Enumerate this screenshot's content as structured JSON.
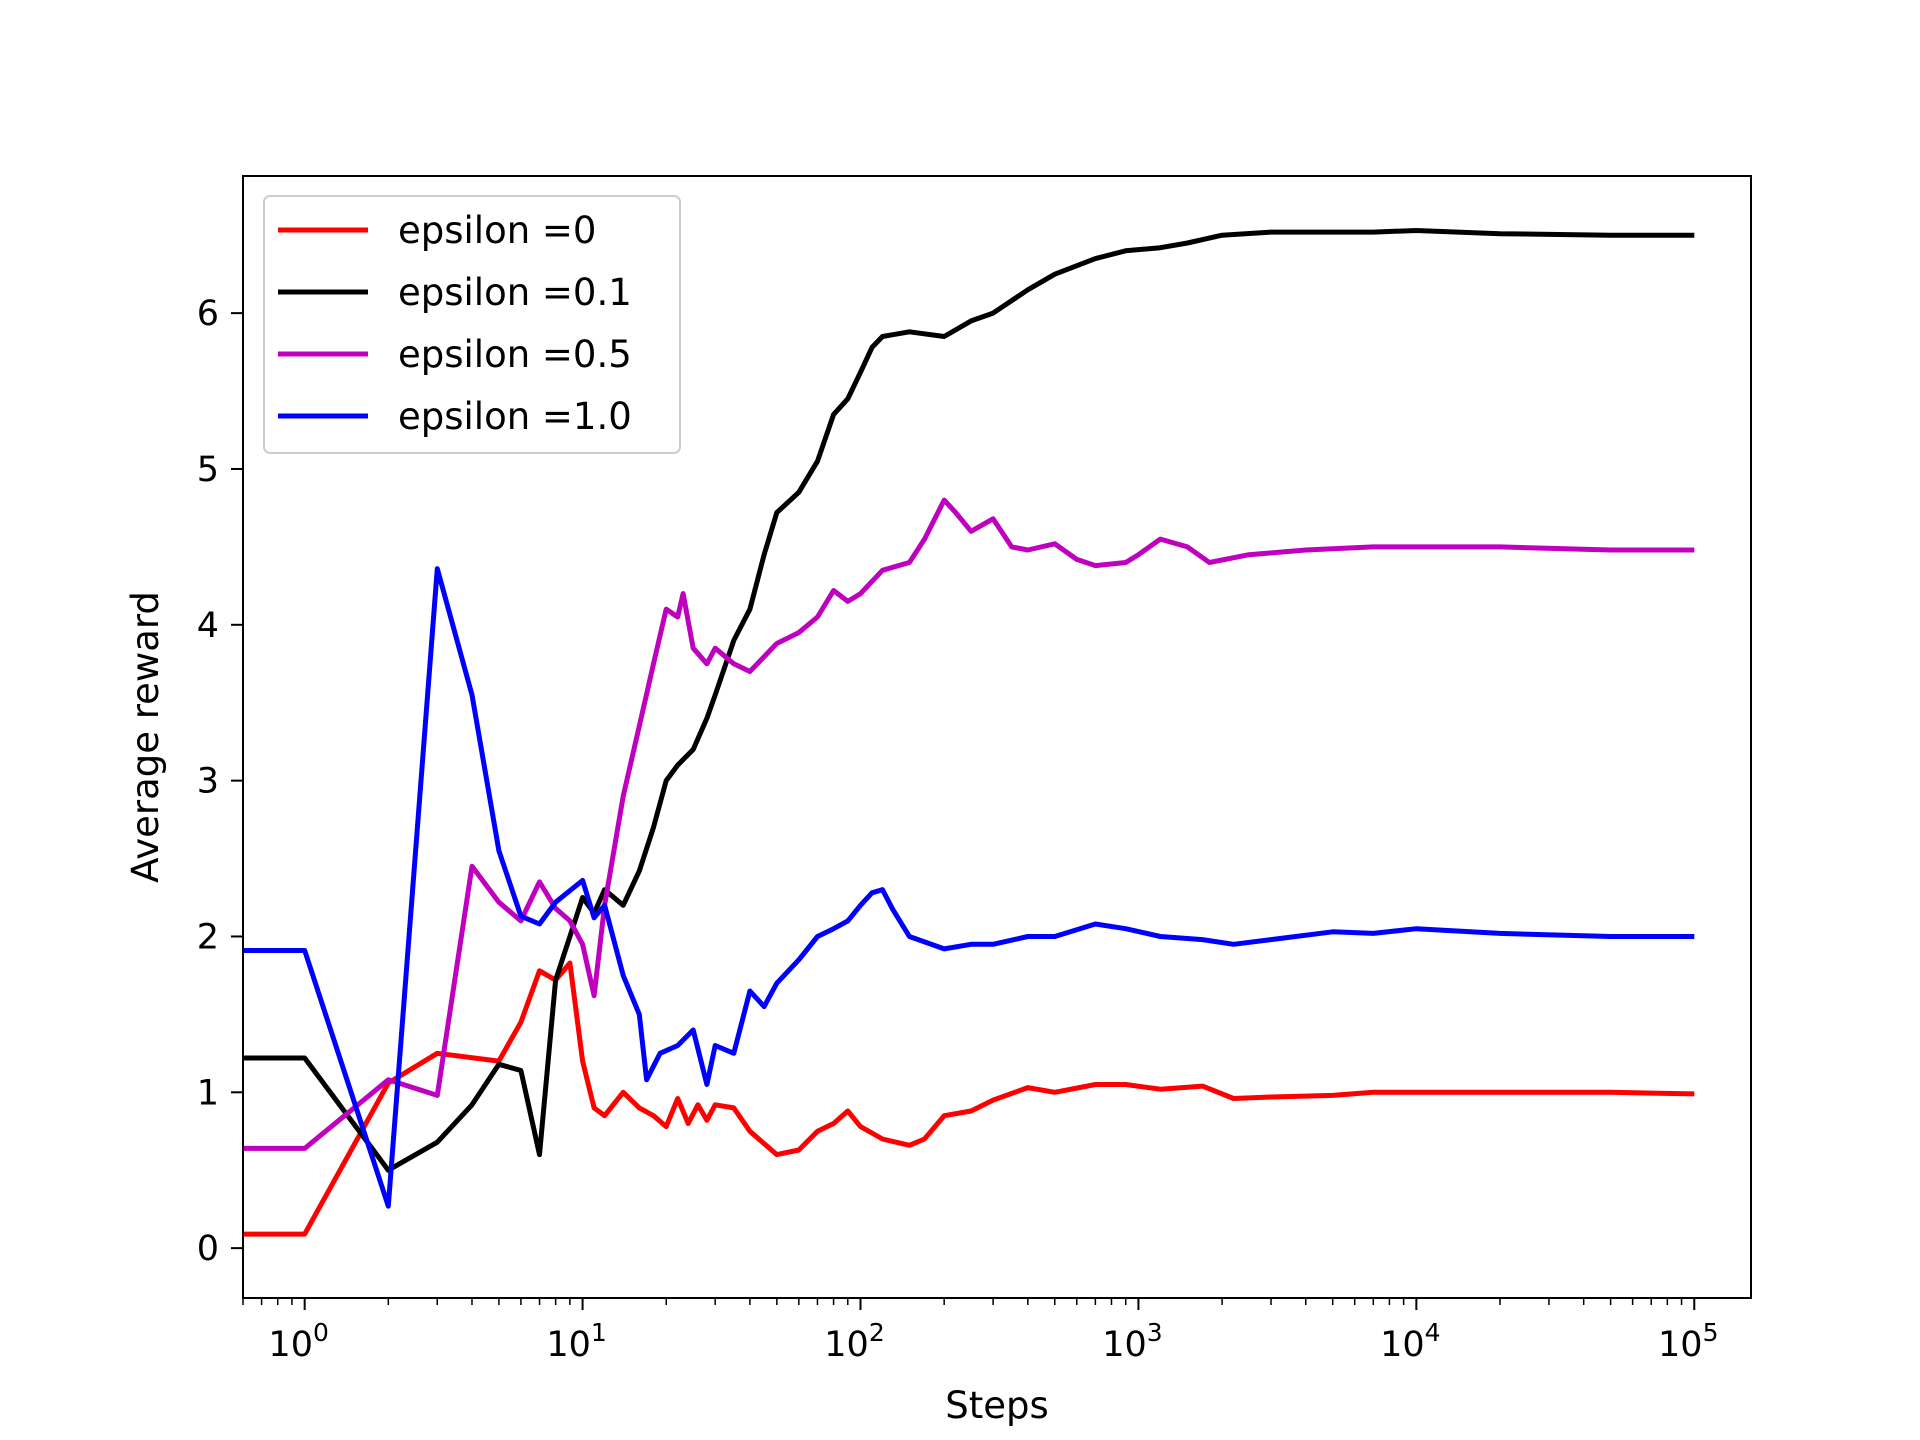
{
  "chart_data": {
    "type": "line",
    "title": "",
    "xlabel": "Steps",
    "ylabel": "Average reward",
    "xscale": "log",
    "xlim": [
      0.6,
      160000
    ],
    "ylim": [
      -0.32,
      6.88
    ],
    "x_ticks": [
      {
        "base": "10",
        "exp": "0",
        "value": 1
      },
      {
        "base": "10",
        "exp": "1",
        "value": 10
      },
      {
        "base": "10",
        "exp": "2",
        "value": 100
      },
      {
        "base": "10",
        "exp": "3",
        "value": 1000
      },
      {
        "base": "10",
        "exp": "4",
        "value": 10000
      },
      {
        "base": "10",
        "exp": "5",
        "value": 100000
      }
    ],
    "y_ticks": [
      "0",
      "1",
      "2",
      "3",
      "4",
      "5",
      "6"
    ],
    "legend": "upper-left",
    "grid": false,
    "series": [
      {
        "name": "epsilon =0",
        "color": "#ff0000",
        "points": [
          [
            0.6,
            0.09
          ],
          [
            1,
            0.09
          ],
          [
            2,
            1.06
          ],
          [
            3,
            1.25
          ],
          [
            5,
            1.2
          ],
          [
            6,
            1.45
          ],
          [
            7,
            1.78
          ],
          [
            8,
            1.72
          ],
          [
            9,
            1.83
          ],
          [
            10,
            1.2
          ],
          [
            11,
            0.9
          ],
          [
            12,
            0.85
          ],
          [
            14,
            1.0
          ],
          [
            16,
            0.9
          ],
          [
            18,
            0.85
          ],
          [
            20,
            0.78
          ],
          [
            22,
            0.96
          ],
          [
            24,
            0.8
          ],
          [
            26,
            0.92
          ],
          [
            28,
            0.82
          ],
          [
            30,
            0.92
          ],
          [
            35,
            0.9
          ],
          [
            40,
            0.75
          ],
          [
            50,
            0.6
          ],
          [
            60,
            0.63
          ],
          [
            70,
            0.75
          ],
          [
            80,
            0.8
          ],
          [
            90,
            0.88
          ],
          [
            100,
            0.78
          ],
          [
            120,
            0.7
          ],
          [
            150,
            0.66
          ],
          [
            170,
            0.7
          ],
          [
            200,
            0.85
          ],
          [
            250,
            0.88
          ],
          [
            300,
            0.95
          ],
          [
            400,
            1.03
          ],
          [
            500,
            1.0
          ],
          [
            700,
            1.05
          ],
          [
            900,
            1.05
          ],
          [
            1200,
            1.02
          ],
          [
            1700,
            1.04
          ],
          [
            2200,
            0.96
          ],
          [
            3000,
            0.97
          ],
          [
            5000,
            0.98
          ],
          [
            7000,
            1.0
          ],
          [
            10000,
            1.0
          ],
          [
            20000,
            1.0
          ],
          [
            50000,
            1.0
          ],
          [
            100000,
            0.99
          ]
        ]
      },
      {
        "name": "epsilon =0.1",
        "color": "#000000",
        "points": [
          [
            0.6,
            1.22
          ],
          [
            1,
            1.22
          ],
          [
            2,
            0.5
          ],
          [
            3,
            0.68
          ],
          [
            4,
            0.92
          ],
          [
            5,
            1.18
          ],
          [
            6,
            1.14
          ],
          [
            7,
            0.6
          ],
          [
            8,
            1.72
          ],
          [
            9,
            2.0
          ],
          [
            10,
            2.25
          ],
          [
            11,
            2.15
          ],
          [
            12,
            2.3
          ],
          [
            14,
            2.2
          ],
          [
            16,
            2.42
          ],
          [
            18,
            2.7
          ],
          [
            20,
            3.0
          ],
          [
            22,
            3.1
          ],
          [
            25,
            3.2
          ],
          [
            28,
            3.4
          ],
          [
            30,
            3.55
          ],
          [
            35,
            3.9
          ],
          [
            40,
            4.1
          ],
          [
            45,
            4.45
          ],
          [
            50,
            4.72
          ],
          [
            60,
            4.85
          ],
          [
            70,
            5.05
          ],
          [
            80,
            5.35
          ],
          [
            90,
            5.45
          ],
          [
            100,
            5.62
          ],
          [
            110,
            5.78
          ],
          [
            120,
            5.85
          ],
          [
            150,
            5.88
          ],
          [
            200,
            5.85
          ],
          [
            250,
            5.95
          ],
          [
            300,
            6.0
          ],
          [
            400,
            6.15
          ],
          [
            500,
            6.25
          ],
          [
            700,
            6.35
          ],
          [
            900,
            6.4
          ],
          [
            1200,
            6.42
          ],
          [
            1500,
            6.45
          ],
          [
            2000,
            6.5
          ],
          [
            3000,
            6.52
          ],
          [
            5000,
            6.52
          ],
          [
            7000,
            6.52
          ],
          [
            10000,
            6.53
          ],
          [
            20000,
            6.51
          ],
          [
            50000,
            6.5
          ],
          [
            100000,
            6.5
          ]
        ]
      },
      {
        "name": "epsilon =0.5",
        "color": "#bf00bf",
        "points": [
          [
            0.6,
            0.64
          ],
          [
            1,
            0.64
          ],
          [
            2,
            1.08
          ],
          [
            3,
            0.98
          ],
          [
            4,
            2.45
          ],
          [
            5,
            2.22
          ],
          [
            6,
            2.1
          ],
          [
            7,
            2.35
          ],
          [
            8,
            2.18
          ],
          [
            9,
            2.1
          ],
          [
            10,
            1.95
          ],
          [
            11,
            1.62
          ],
          [
            12,
            2.2
          ],
          [
            14,
            2.9
          ],
          [
            16,
            3.35
          ],
          [
            18,
            3.75
          ],
          [
            20,
            4.1
          ],
          [
            22,
            4.05
          ],
          [
            23,
            4.2
          ],
          [
            25,
            3.85
          ],
          [
            28,
            3.75
          ],
          [
            30,
            3.85
          ],
          [
            35,
            3.75
          ],
          [
            40,
            3.7
          ],
          [
            50,
            3.88
          ],
          [
            60,
            3.95
          ],
          [
            70,
            4.05
          ],
          [
            80,
            4.22
          ],
          [
            90,
            4.15
          ],
          [
            100,
            4.2
          ],
          [
            120,
            4.35
          ],
          [
            150,
            4.4
          ],
          [
            170,
            4.55
          ],
          [
            200,
            4.8
          ],
          [
            220,
            4.72
          ],
          [
            250,
            4.6
          ],
          [
            300,
            4.68
          ],
          [
            350,
            4.5
          ],
          [
            400,
            4.48
          ],
          [
            500,
            4.52
          ],
          [
            600,
            4.42
          ],
          [
            700,
            4.38
          ],
          [
            900,
            4.4
          ],
          [
            1000,
            4.45
          ],
          [
            1200,
            4.55
          ],
          [
            1500,
            4.5
          ],
          [
            1800,
            4.4
          ],
          [
            2500,
            4.45
          ],
          [
            4000,
            4.48
          ],
          [
            7000,
            4.5
          ],
          [
            10000,
            4.5
          ],
          [
            20000,
            4.5
          ],
          [
            50000,
            4.48
          ],
          [
            100000,
            4.48
          ]
        ]
      },
      {
        "name": "epsilon =1.0",
        "color": "#0000ff",
        "points": [
          [
            0.6,
            1.91
          ],
          [
            1,
            1.91
          ],
          [
            2,
            0.27
          ],
          [
            3,
            4.36
          ],
          [
            4,
            3.55
          ],
          [
            5,
            2.55
          ],
          [
            6,
            2.13
          ],
          [
            7,
            2.08
          ],
          [
            8,
            2.22
          ],
          [
            10,
            2.36
          ],
          [
            11,
            2.12
          ],
          [
            12,
            2.2
          ],
          [
            14,
            1.75
          ],
          [
            16,
            1.5
          ],
          [
            17,
            1.08
          ],
          [
            19,
            1.25
          ],
          [
            22,
            1.3
          ],
          [
            25,
            1.4
          ],
          [
            28,
            1.05
          ],
          [
            30,
            1.3
          ],
          [
            35,
            1.25
          ],
          [
            40,
            1.65
          ],
          [
            45,
            1.55
          ],
          [
            50,
            1.7
          ],
          [
            60,
            1.85
          ],
          [
            70,
            2.0
          ],
          [
            80,
            2.05
          ],
          [
            90,
            2.1
          ],
          [
            100,
            2.2
          ],
          [
            110,
            2.28
          ],
          [
            120,
            2.3
          ],
          [
            130,
            2.18
          ],
          [
            150,
            2.0
          ],
          [
            200,
            1.92
          ],
          [
            250,
            1.95
          ],
          [
            300,
            1.95
          ],
          [
            400,
            2.0
          ],
          [
            500,
            2.0
          ],
          [
            700,
            2.08
          ],
          [
            900,
            2.05
          ],
          [
            1200,
            2.0
          ],
          [
            1700,
            1.98
          ],
          [
            2200,
            1.95
          ],
          [
            3000,
            1.98
          ],
          [
            5000,
            2.03
          ],
          [
            7000,
            2.02
          ],
          [
            10000,
            2.05
          ],
          [
            20000,
            2.02
          ],
          [
            50000,
            2.0
          ],
          [
            100000,
            2.0
          ]
        ]
      }
    ]
  }
}
